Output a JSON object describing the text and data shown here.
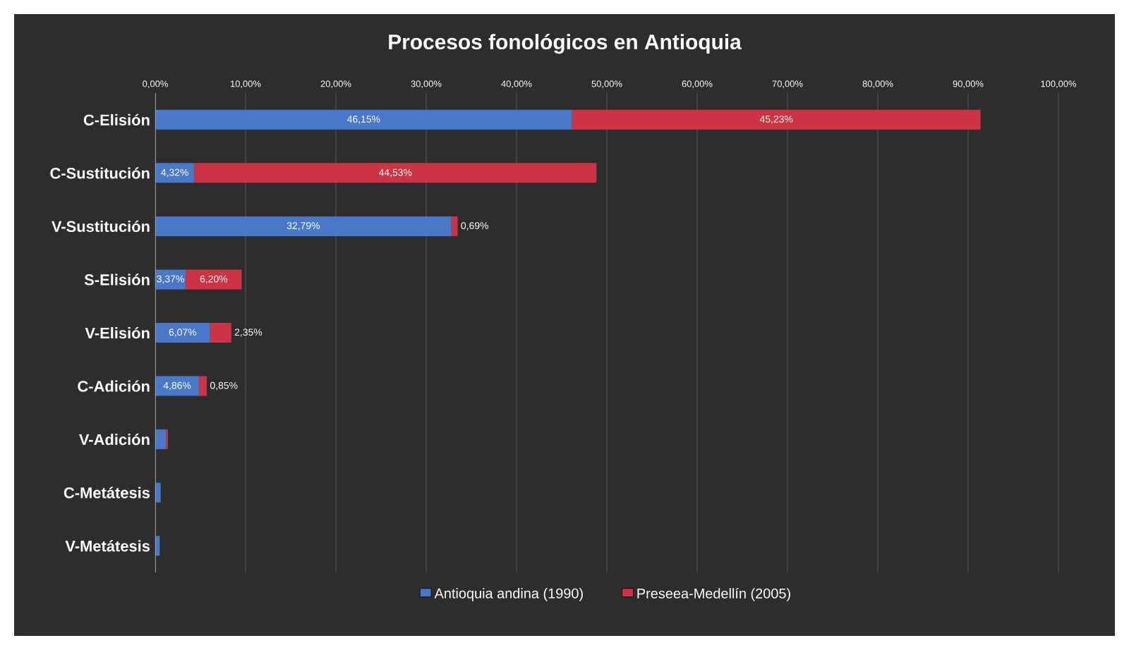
{
  "chart_data": {
    "type": "bar",
    "orientation": "horizontal",
    "stacked": true,
    "title": "Procesos fonológicos en Antioquia",
    "categories": [
      "C-Elisión",
      "C-Sustitución",
      "V-Sustitución",
      "S-Elisión",
      "V-Elisión",
      "C-Adición",
      "V-Adición",
      "C-Metátesis",
      "V-Metátesis"
    ],
    "series": [
      {
        "name": "Antioquia andina (1990)",
        "color": "#4a78c8",
        "values": [
          46.15,
          4.32,
          32.79,
          3.37,
          6.07,
          4.86,
          1.2,
          0.6,
          0.5
        ],
        "value_labels": [
          "46,15%",
          "4,32%",
          "32,79%",
          "3,37%",
          "6,07%",
          "4,86%",
          null,
          null,
          null
        ]
      },
      {
        "name": "Preseea-Medellín (2005)",
        "color": "#cc3344",
        "values": [
          45.23,
          44.53,
          0.69,
          6.2,
          2.35,
          0.85,
          0.2,
          null,
          null
        ],
        "value_labels": [
          "45,23%",
          "44,53%",
          "0,69%",
          "6,20%",
          "2,35%",
          "0,85%",
          null,
          null,
          null
        ]
      }
    ],
    "xlim": [
      0,
      100
    ],
    "xticks": [
      {
        "value": 0,
        "label": "0,00%"
      },
      {
        "value": 10,
        "label": "10,00%"
      },
      {
        "value": 20,
        "label": "20,00%"
      },
      {
        "value": 30,
        "label": "30,00%"
      },
      {
        "value": 40,
        "label": "40,00%"
      },
      {
        "value": 50,
        "label": "50,00%"
      },
      {
        "value": 60,
        "label": "60,00%"
      },
      {
        "value": 70,
        "label": "70,00%"
      },
      {
        "value": 80,
        "label": "80,00%"
      },
      {
        "value": 90,
        "label": "90,00%"
      },
      {
        "value": 100,
        "label": "100,00%"
      }
    ],
    "grid": "x",
    "legend": "bottom"
  }
}
